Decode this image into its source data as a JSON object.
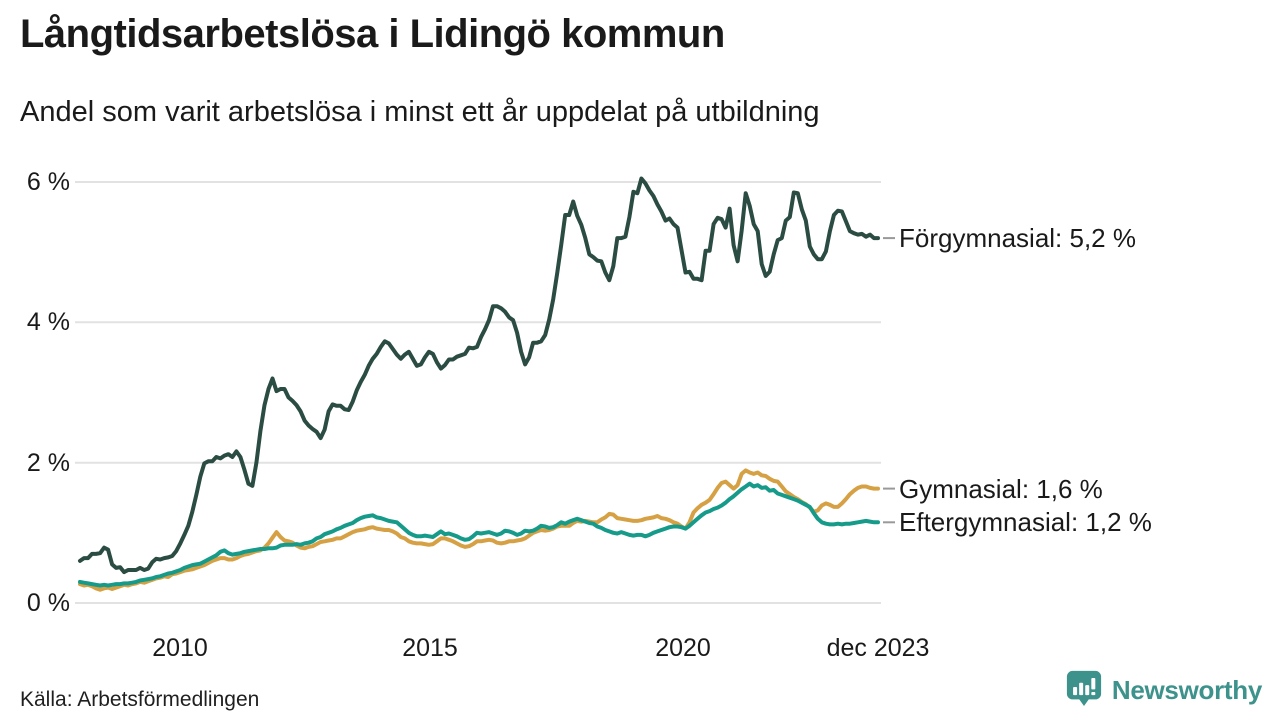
{
  "header": {
    "title": "Långtidsarbetslösa i Lidingö kommun",
    "subtitle": "Andel som varit arbetslösa i minst ett år uppdelat på utbildning"
  },
  "footer": {
    "source": "Källa: Arbetsförmedlingen",
    "brand": "Newsworthy"
  },
  "colors": {
    "grid": "#e2e2e2",
    "connector": "#999999",
    "text": "#1a1a1a",
    "brand": "#3d928c"
  },
  "chart_data": {
    "type": "line",
    "title": "Långtidsarbetslösa i Lidingö kommun",
    "subtitle": "Andel som varit arbetslösa i minst ett år uppdelat på utbildning",
    "unit": "%",
    "grid": "horizontal",
    "legend_position": "right-end-labels",
    "xlim": [
      2008.0,
      2024.1
    ],
    "ylim": [
      0,
      6.3
    ],
    "y_ticks": [
      {
        "label": "6 %",
        "value": 6
      },
      {
        "label": "4 %",
        "value": 4
      },
      {
        "label": "2 %",
        "value": 2
      },
      {
        "label": "0 %",
        "value": 0
      }
    ],
    "x_ticks": [
      {
        "label": "2010",
        "year": 2010
      },
      {
        "label": "2015",
        "year": 2015
      },
      {
        "label": "2020",
        "year": 2020
      },
      {
        "label": "dec 2023",
        "year": 2023.96
      }
    ],
    "series": [
      {
        "id": "forgymnasial",
        "name": "Förgymnasial",
        "label": "Förgymnasial: 5,2 %",
        "end_value": "5,2 %",
        "color": "#2b4c42",
        "start": 2008.0,
        "step": 0.0802,
        "values": [
          0.6,
          0.64,
          0.64,
          0.7,
          0.7,
          0.71,
          0.79,
          0.76,
          0.55,
          0.5,
          0.51,
          0.44,
          0.47,
          0.47,
          0.47,
          0.5,
          0.47,
          0.49,
          0.58,
          0.63,
          0.62,
          0.64,
          0.65,
          0.67,
          0.74,
          0.85,
          0.97,
          1.1,
          1.3,
          1.54,
          1.8,
          1.99,
          2.02,
          2.02,
          2.08,
          2.06,
          2.1,
          2.12,
          2.08,
          2.16,
          2.08,
          1.9,
          1.7,
          1.67,
          2.0,
          2.45,
          2.82,
          3.05,
          3.2,
          3.02,
          3.05,
          3.05,
          2.93,
          2.88,
          2.82,
          2.73,
          2.6,
          2.53,
          2.48,
          2.44,
          2.35,
          2.47,
          2.73,
          2.83,
          2.81,
          2.81,
          2.76,
          2.75,
          2.87,
          3.03,
          3.15,
          3.25,
          3.38,
          3.48,
          3.55,
          3.65,
          3.73,
          3.7,
          3.62,
          3.54,
          3.48,
          3.54,
          3.58,
          3.48,
          3.38,
          3.4,
          3.5,
          3.58,
          3.55,
          3.43,
          3.34,
          3.39,
          3.47,
          3.47,
          3.51,
          3.53,
          3.55,
          3.64,
          3.63,
          3.65,
          3.79,
          3.9,
          4.03,
          4.23,
          4.23,
          4.2,
          4.15,
          4.07,
          4.03,
          3.85,
          3.58,
          3.4,
          3.5,
          3.71,
          3.71,
          3.73,
          3.82,
          4.04,
          4.33,
          4.7,
          5.1,
          5.53,
          5.53,
          5.72,
          5.52,
          5.39,
          5.2,
          4.97,
          4.93,
          4.88,
          4.87,
          4.71,
          4.6,
          4.8,
          5.2,
          5.2,
          5.22,
          5.5,
          5.86,
          5.84,
          6.05,
          5.98,
          5.88,
          5.8,
          5.68,
          5.58,
          5.45,
          5.48,
          5.4,
          5.35,
          5.03,
          4.71,
          4.72,
          4.62,
          4.62,
          4.6,
          5.02,
          5.02,
          5.4,
          5.49,
          5.47,
          5.35,
          5.62,
          5.1,
          4.87,
          5.3,
          5.84,
          5.66,
          5.4,
          5.3,
          4.83,
          4.66,
          4.72,
          4.97,
          5.17,
          5.2,
          5.45,
          5.5,
          5.85,
          5.84,
          5.61,
          5.45,
          5.08,
          4.97,
          4.9,
          4.9,
          5.01,
          5.3,
          5.53,
          5.59,
          5.58,
          5.44,
          5.3,
          5.27,
          5.25,
          5.26,
          5.22,
          5.25,
          5.2,
          5.2
        ]
      },
      {
        "id": "gymnasial",
        "name": "Gymnasial",
        "label": "Gymnasial: 1,6 %",
        "end_value": "1,6 %",
        "color": "#d6a144",
        "start": 2008.0,
        "step": 0.0802,
        "values": [
          0.27,
          0.25,
          0.26,
          0.24,
          0.21,
          0.19,
          0.21,
          0.22,
          0.2,
          0.22,
          0.24,
          0.26,
          0.25,
          0.27,
          0.28,
          0.3,
          0.29,
          0.31,
          0.33,
          0.35,
          0.36,
          0.38,
          0.37,
          0.41,
          0.42,
          0.44,
          0.46,
          0.47,
          0.48,
          0.5,
          0.52,
          0.54,
          0.57,
          0.6,
          0.62,
          0.64,
          0.64,
          0.62,
          0.62,
          0.64,
          0.67,
          0.69,
          0.7,
          0.72,
          0.74,
          0.75,
          0.79,
          0.85,
          0.93,
          1.01,
          0.94,
          0.89,
          0.88,
          0.86,
          0.82,
          0.79,
          0.78,
          0.8,
          0.81,
          0.84,
          0.87,
          0.88,
          0.89,
          0.9,
          0.92,
          0.92,
          0.95,
          0.98,
          1.01,
          1.03,
          1.04,
          1.05,
          1.07,
          1.08,
          1.06,
          1.05,
          1.04,
          1.04,
          1.02,
          0.99,
          0.94,
          0.92,
          0.88,
          0.86,
          0.85,
          0.85,
          0.84,
          0.83,
          0.84,
          0.88,
          0.92,
          0.92,
          0.9,
          0.88,
          0.85,
          0.82,
          0.8,
          0.81,
          0.84,
          0.88,
          0.88,
          0.89,
          0.9,
          0.89,
          0.86,
          0.85,
          0.86,
          0.88,
          0.88,
          0.89,
          0.9,
          0.92,
          0.96,
          1.0,
          1.02,
          1.04,
          1.03,
          1.04,
          1.06,
          1.09,
          1.1,
          1.1,
          1.1,
          1.14,
          1.17,
          1.16,
          1.17,
          1.16,
          1.15,
          1.15,
          1.19,
          1.22,
          1.27,
          1.26,
          1.21,
          1.2,
          1.19,
          1.18,
          1.17,
          1.17,
          1.18,
          1.2,
          1.21,
          1.22,
          1.24,
          1.21,
          1.2,
          1.18,
          1.15,
          1.13,
          1.09,
          1.06,
          1.15,
          1.29,
          1.35,
          1.4,
          1.43,
          1.47,
          1.55,
          1.64,
          1.71,
          1.73,
          1.68,
          1.63,
          1.68,
          1.84,
          1.89,
          1.86,
          1.84,
          1.86,
          1.82,
          1.81,
          1.77,
          1.74,
          1.73,
          1.66,
          1.59,
          1.55,
          1.51,
          1.48,
          1.44,
          1.41,
          1.36,
          1.3,
          1.32,
          1.39,
          1.42,
          1.4,
          1.37,
          1.37,
          1.42,
          1.48,
          1.55,
          1.6,
          1.64,
          1.66,
          1.66,
          1.64,
          1.63,
          1.63
        ]
      },
      {
        "id": "eftergymnasial",
        "name": "Eftergymnasial",
        "label": "Eftergymnasial: 1,2 %",
        "end_value": "1,2 %",
        "color": "#169b8a",
        "start": 2008.0,
        "step": 0.0802,
        "values": [
          0.3,
          0.29,
          0.28,
          0.27,
          0.26,
          0.25,
          0.26,
          0.25,
          0.26,
          0.27,
          0.27,
          0.28,
          0.28,
          0.29,
          0.3,
          0.32,
          0.33,
          0.34,
          0.35,
          0.37,
          0.38,
          0.4,
          0.42,
          0.43,
          0.45,
          0.47,
          0.5,
          0.52,
          0.54,
          0.55,
          0.56,
          0.59,
          0.62,
          0.65,
          0.68,
          0.73,
          0.75,
          0.71,
          0.69,
          0.7,
          0.71,
          0.73,
          0.74,
          0.75,
          0.76,
          0.77,
          0.77,
          0.78,
          0.78,
          0.79,
          0.82,
          0.83,
          0.83,
          0.83,
          0.84,
          0.83,
          0.85,
          0.86,
          0.88,
          0.92,
          0.94,
          0.98,
          1.0,
          1.02,
          1.05,
          1.07,
          1.1,
          1.12,
          1.14,
          1.18,
          1.21,
          1.23,
          1.24,
          1.25,
          1.22,
          1.21,
          1.19,
          1.17,
          1.16,
          1.15,
          1.1,
          1.05,
          1.0,
          0.97,
          0.95,
          0.95,
          0.96,
          0.95,
          0.94,
          0.98,
          1.02,
          0.98,
          0.99,
          0.97,
          0.95,
          0.92,
          0.9,
          0.91,
          0.95,
          1.0,
          0.99,
          1.0,
          1.01,
          0.99,
          0.97,
          0.99,
          1.03,
          1.02,
          1.0,
          0.97,
          0.99,
          1.03,
          1.02,
          1.03,
          1.06,
          1.1,
          1.09,
          1.07,
          1.08,
          1.11,
          1.15,
          1.13,
          1.16,
          1.18,
          1.2,
          1.18,
          1.16,
          1.14,
          1.13,
          1.09,
          1.07,
          1.04,
          1.02,
          1.0,
          0.99,
          1.01,
          0.99,
          0.97,
          0.96,
          0.97,
          0.97,
          0.95,
          0.97,
          1.0,
          1.02,
          1.04,
          1.06,
          1.08,
          1.09,
          1.09,
          1.08,
          1.06,
          1.1,
          1.15,
          1.2,
          1.25,
          1.29,
          1.31,
          1.34,
          1.36,
          1.39,
          1.43,
          1.48,
          1.52,
          1.57,
          1.62,
          1.66,
          1.7,
          1.66,
          1.68,
          1.64,
          1.65,
          1.6,
          1.61,
          1.56,
          1.54,
          1.52,
          1.5,
          1.48,
          1.46,
          1.43,
          1.4,
          1.37,
          1.28,
          1.2,
          1.15,
          1.13,
          1.12,
          1.12,
          1.13,
          1.12,
          1.13,
          1.13,
          1.14,
          1.15,
          1.16,
          1.17,
          1.16,
          1.15,
          1.15
        ]
      }
    ]
  }
}
